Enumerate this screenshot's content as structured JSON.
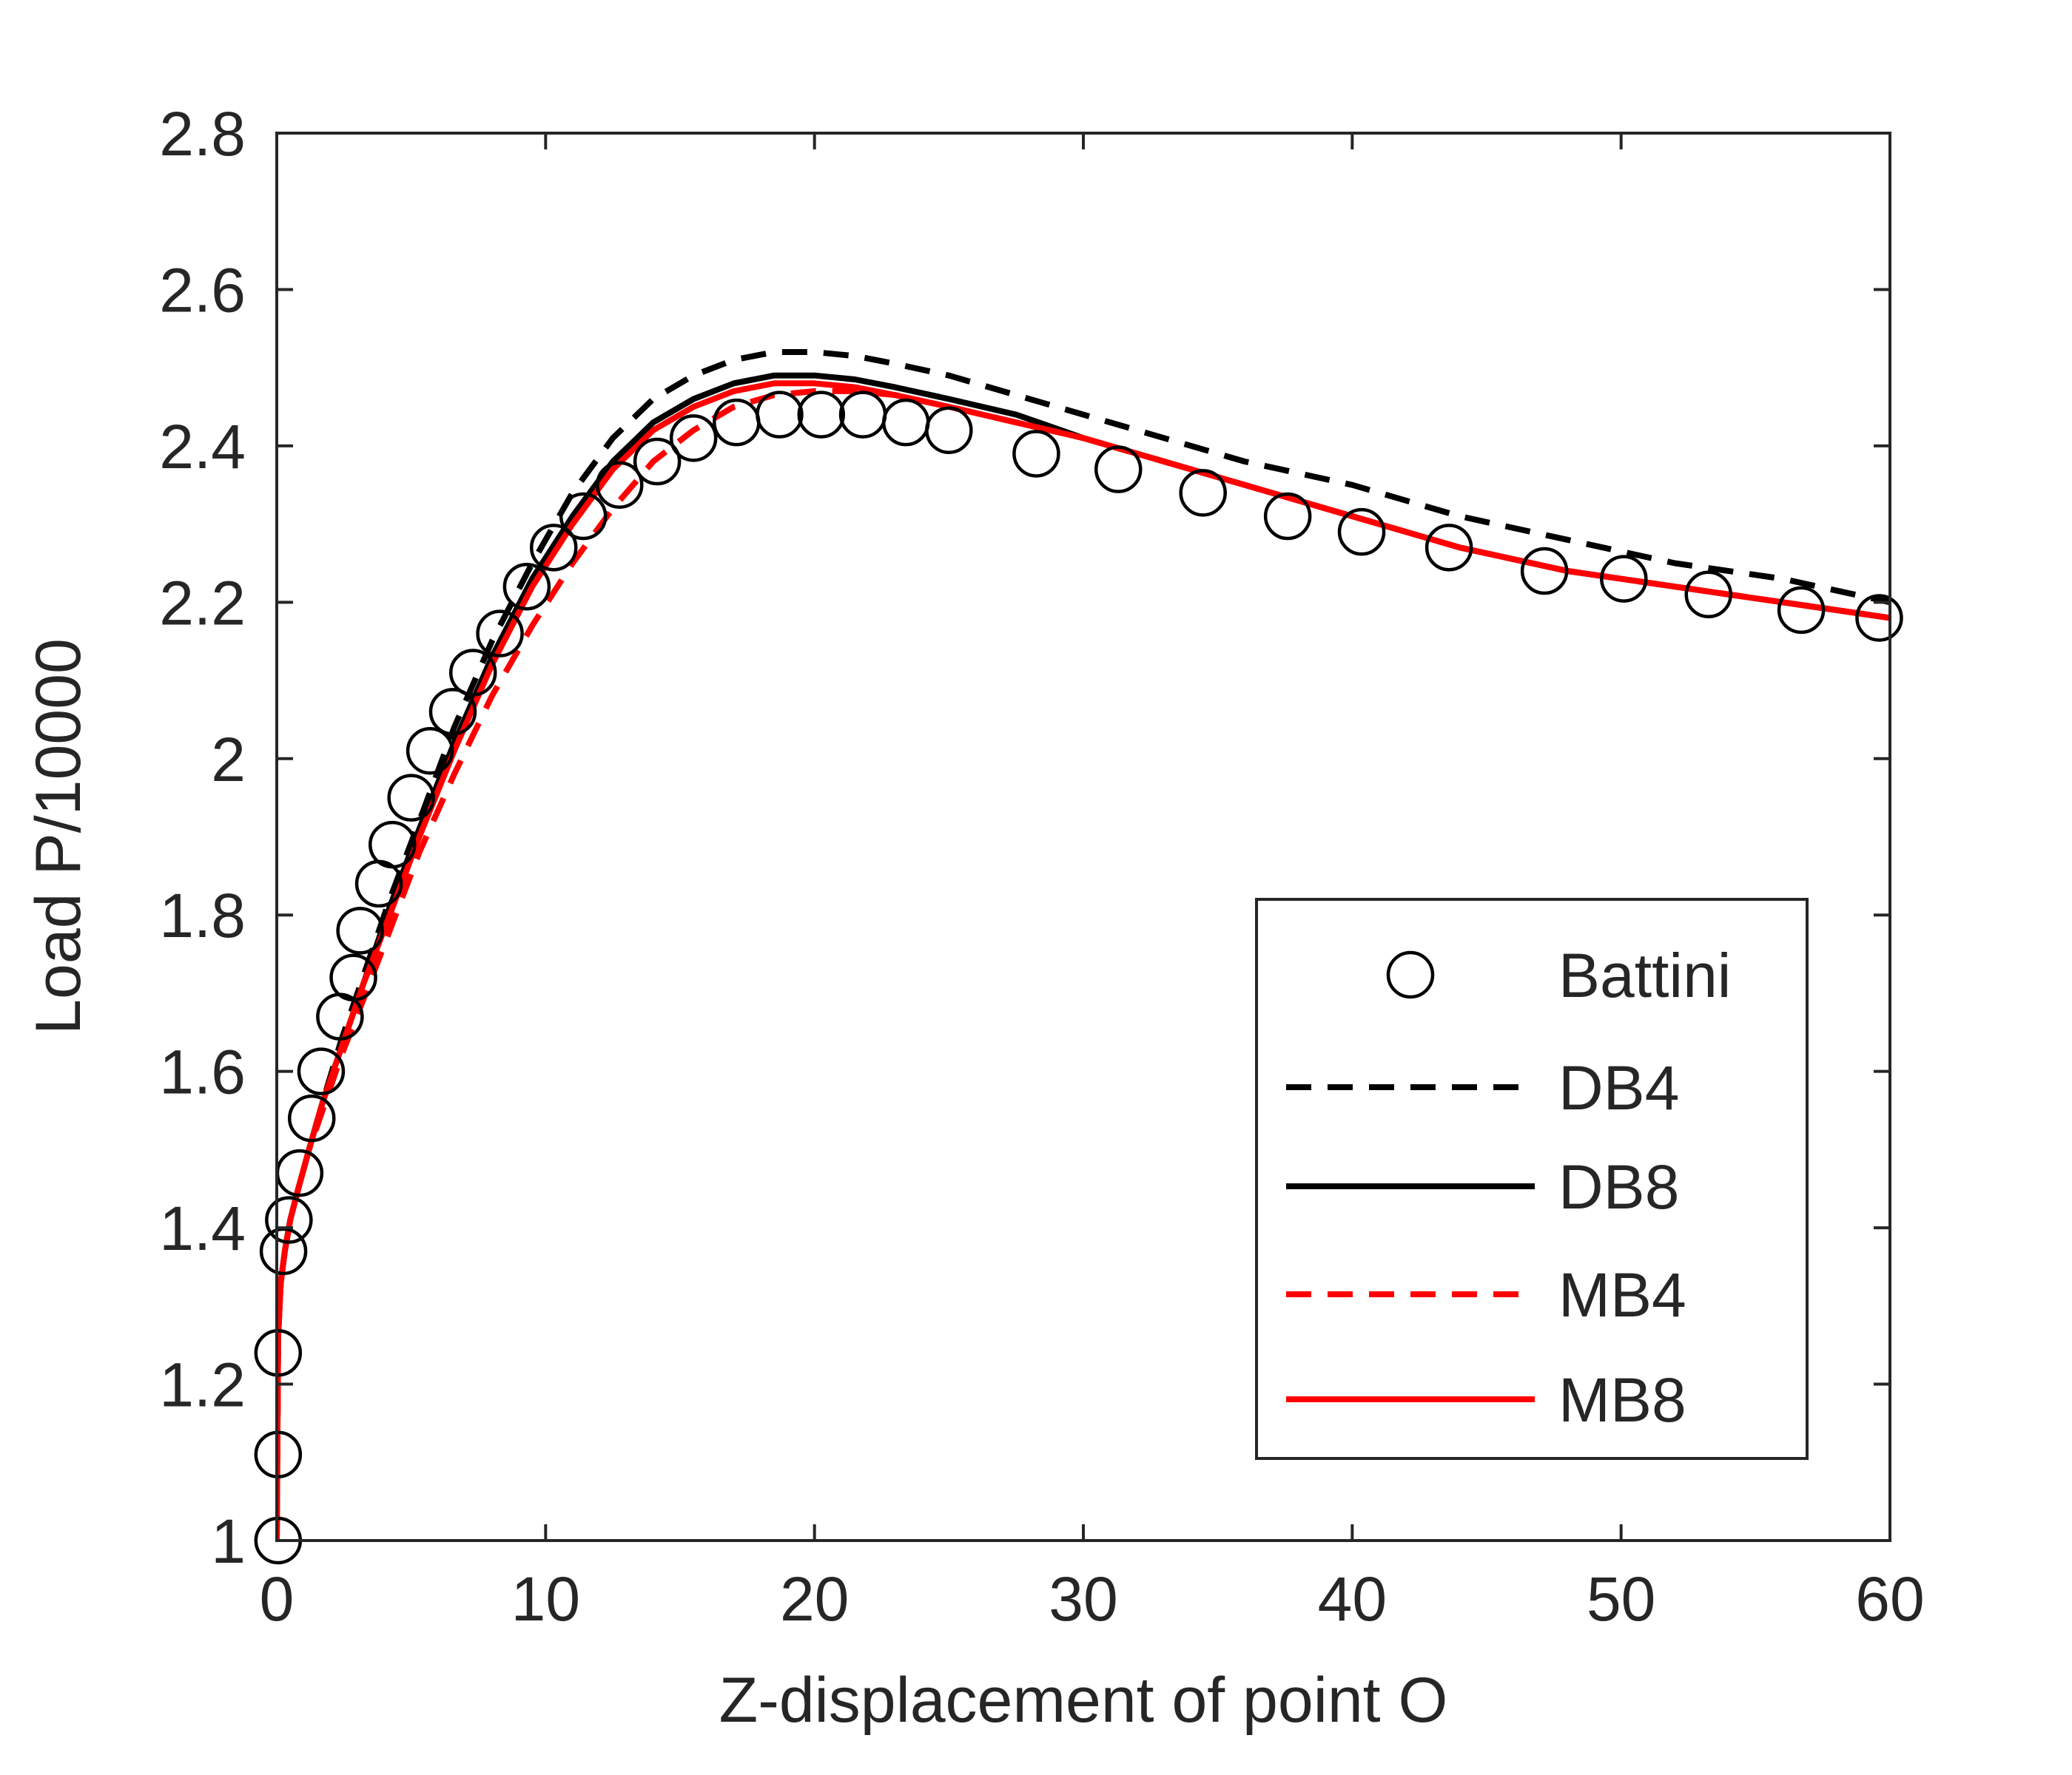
{
  "chart_data": {
    "type": "line",
    "title": "",
    "xlabel": "Z-displacement of point O",
    "ylabel": "Load P/10000",
    "xlim": [
      0,
      60
    ],
    "ylim": [
      1,
      2.8
    ],
    "xticks": [
      0,
      10,
      20,
      30,
      40,
      50,
      60
    ],
    "xtick_labels": [
      "0",
      "10",
      "20",
      "30",
      "40",
      "50",
      "60"
    ],
    "yticks": [
      1,
      1.2,
      1.4,
      1.6,
      1.8,
      2,
      2.2,
      2.4,
      2.6,
      2.8
    ],
    "ytick_labels": [
      "1",
      "1.2",
      "1.4",
      "1.6",
      "1.8",
      "2",
      "2.2",
      "2.4",
      "2.6",
      "2.8"
    ],
    "grid": false,
    "legend_position": "bottom-right",
    "series": [
      {
        "name": "Battini",
        "style": "markers",
        "marker": "open-circle",
        "color": "#000000",
        "x": [
          0.05,
          0.05,
          0.05,
          0.25,
          0.45,
          0.85,
          1.3,
          1.65,
          2.35,
          2.85,
          3.1,
          3.8,
          4.3,
          5.0,
          5.7,
          6.55,
          7.3,
          8.3,
          9.3,
          10.3,
          11.4,
          12.75,
          14.15,
          15.5,
          17.1,
          18.7,
          20.25,
          21.8,
          23.4,
          25.0,
          28.25,
          31.3,
          34.45,
          37.6,
          40.35,
          43.6,
          47.15,
          50.1,
          53.25,
          56.7,
          59.6
        ],
        "y": [
          1.0,
          1.11,
          1.24,
          1.37,
          1.41,
          1.47,
          1.54,
          1.6,
          1.67,
          1.72,
          1.78,
          1.84,
          1.89,
          1.95,
          2.01,
          2.06,
          2.11,
          2.16,
          2.22,
          2.27,
          2.31,
          2.35,
          2.38,
          2.41,
          2.43,
          2.44,
          2.44,
          2.44,
          2.43,
          2.42,
          2.39,
          2.37,
          2.34,
          2.31,
          2.29,
          2.27,
          2.24,
          2.23,
          2.21,
          2.19,
          2.18
        ]
      },
      {
        "name": "DB4",
        "style": "dashed",
        "color": "#000000",
        "x": [
          0,
          0.05,
          0.15,
          0.3,
          0.5,
          0.8,
          1.2,
          1.7,
          2.4,
          3.2,
          4.2,
          5.3,
          6.6,
          8.0,
          9.5,
          11.0,
          12.5,
          14.0,
          15.5,
          17.0,
          18.5,
          20.0,
          21.5,
          23.0,
          25.0,
          27.5,
          30.0,
          33.0,
          36.0,
          40.0,
          44.0,
          48.0,
          52.0,
          56.0,
          60.0
        ],
        "y": [
          1.0,
          1.26,
          1.33,
          1.37,
          1.41,
          1.45,
          1.5,
          1.56,
          1.64,
          1.72,
          1.82,
          1.92,
          2.04,
          2.15,
          2.25,
          2.34,
          2.41,
          2.46,
          2.49,
          2.51,
          2.52,
          2.52,
          2.515,
          2.505,
          2.49,
          2.465,
          2.44,
          2.41,
          2.38,
          2.35,
          2.31,
          2.28,
          2.25,
          2.23,
          2.2
        ]
      },
      {
        "name": "DB8",
        "style": "solid",
        "color": "#000000",
        "x": [
          0,
          0.05,
          0.15,
          0.3,
          0.5,
          0.8,
          1.2,
          1.7,
          2.4,
          3.2,
          4.2,
          5.3,
          6.6,
          8.0,
          9.5,
          11.0,
          12.5,
          14.0,
          15.5,
          17.0,
          18.5,
          20.0,
          21.5,
          23.0,
          25.0,
          27.5,
          30.0,
          33.0,
          36.0,
          40.0,
          44.0,
          48.0,
          52.0,
          56.0,
          60.0
        ],
        "y": [
          1.0,
          1.26,
          1.33,
          1.37,
          1.41,
          1.45,
          1.5,
          1.56,
          1.63,
          1.71,
          1.81,
          1.91,
          2.02,
          2.13,
          2.23,
          2.31,
          2.38,
          2.43,
          2.46,
          2.48,
          2.49,
          2.49,
          2.485,
          2.475,
          2.46,
          2.44,
          2.41,
          2.38,
          2.35,
          2.31,
          2.27,
          2.24,
          2.22,
          2.2,
          2.18
        ]
      },
      {
        "name": "MB4",
        "style": "dashed",
        "color": "#ff0000",
        "x": [
          0,
          0.05,
          0.15,
          0.3,
          0.5,
          0.8,
          1.2,
          1.7,
          2.4,
          3.2,
          4.2,
          5.3,
          6.6,
          8.0,
          9.5,
          11.0,
          12.5,
          14.0,
          15.5,
          17.0,
          18.5,
          20.0,
          21.5,
          23.0,
          25.0,
          27.5,
          30.0,
          33.0,
          36.0,
          40.0,
          44.0,
          48.0,
          52.0,
          56.0,
          60.0
        ],
        "y": [
          1.0,
          1.26,
          1.33,
          1.37,
          1.41,
          1.45,
          1.5,
          1.55,
          1.62,
          1.69,
          1.78,
          1.88,
          1.98,
          2.08,
          2.17,
          2.25,
          2.32,
          2.38,
          2.42,
          2.45,
          2.465,
          2.47,
          2.47,
          2.465,
          2.45,
          2.43,
          2.41,
          2.38,
          2.35,
          2.31,
          2.27,
          2.24,
          2.22,
          2.2,
          2.18
        ]
      },
      {
        "name": "MB8",
        "style": "solid",
        "color": "#ff0000",
        "x": [
          0,
          0.05,
          0.15,
          0.3,
          0.5,
          0.8,
          1.2,
          1.7,
          2.4,
          3.2,
          4.2,
          5.3,
          6.6,
          8.0,
          9.5,
          11.0,
          12.5,
          14.0,
          15.5,
          17.0,
          18.5,
          20.0,
          21.5,
          23.0,
          25.0,
          27.5,
          30.0,
          33.0,
          36.0,
          40.0,
          44.0,
          48.0,
          52.0,
          56.0,
          60.0
        ],
        "y": [
          1.0,
          1.26,
          1.33,
          1.37,
          1.41,
          1.45,
          1.5,
          1.56,
          1.63,
          1.71,
          1.8,
          1.9,
          2.01,
          2.12,
          2.22,
          2.3,
          2.37,
          2.42,
          2.45,
          2.47,
          2.48,
          2.48,
          2.475,
          2.465,
          2.45,
          2.43,
          2.41,
          2.38,
          2.35,
          2.31,
          2.27,
          2.24,
          2.22,
          2.2,
          2.18
        ]
      }
    ]
  }
}
